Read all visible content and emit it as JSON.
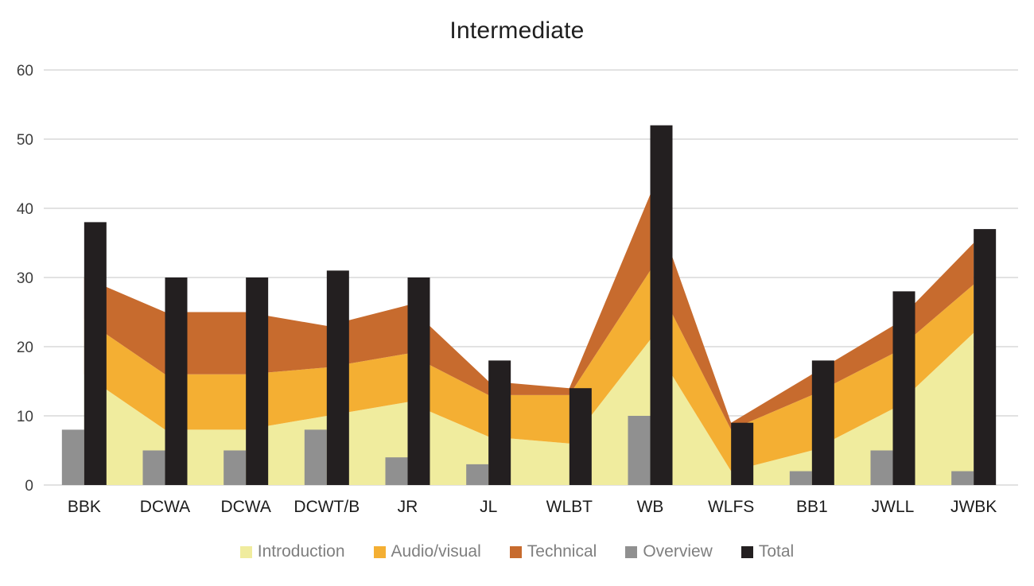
{
  "title": "Intermediate",
  "chart_data": {
    "type": "combo-stacked-area-with-bars",
    "title": "Intermediate",
    "categories": [
      "BBK",
      "DCWA",
      "DCWA",
      "DCWT/B",
      "JR",
      "JL",
      "WLBT",
      "WB",
      "WLFS",
      "BB1",
      "JWLL",
      "JWBK"
    ],
    "area_series": [
      {
        "name": "Introduction",
        "color": "#F0EC9E",
        "values": [
          16,
          8,
          8,
          10,
          12,
          7,
          6,
          21,
          2,
          5,
          11,
          22
        ]
      },
      {
        "name": "Audio/visual",
        "color": "#F4AF33",
        "values": [
          8,
          8,
          8,
          7,
          7,
          6,
          7,
          10,
          6,
          8,
          8,
          7
        ]
      },
      {
        "name": "Technical",
        "color": "#C76B2E",
        "values": [
          6,
          9,
          9,
          6,
          7,
          2,
          1,
          11,
          1,
          3,
          4,
          6
        ]
      }
    ],
    "bar_series": [
      {
        "name": "Overview",
        "color": "#909090",
        "values": [
          8,
          5,
          5,
          8,
          4,
          3,
          0,
          10,
          0,
          2,
          5,
          2
        ]
      },
      {
        "name": "Total",
        "color": "#231F20",
        "values": [
          38,
          30,
          30,
          31,
          30,
          18,
          14,
          52,
          9,
          18,
          28,
          37
        ]
      }
    ],
    "stacking": "area series are stacked; cumulative tops are Introduction, +Audio/visual, +Technical",
    "ylim": [
      0,
      60
    ],
    "y_ticks": [
      0,
      10,
      20,
      30,
      40,
      50,
      60
    ],
    "grid": true,
    "gridline_color": "#D8D8D8",
    "legend_position": "bottom",
    "legend_order": [
      "Introduction",
      "Audio/visual",
      "Technical",
      "Overview",
      "Total"
    ]
  },
  "layout_note_values_visible_only": true
}
